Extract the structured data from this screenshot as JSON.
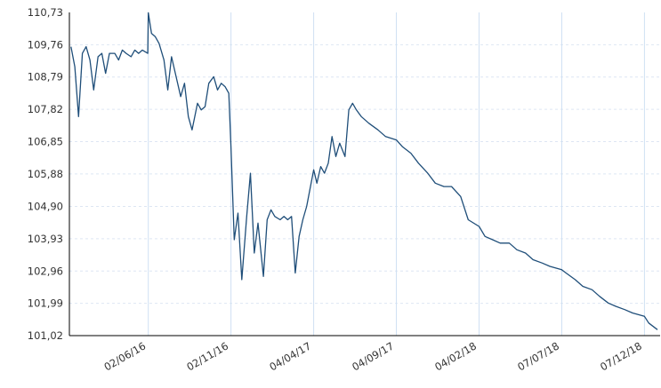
{
  "chart_data": {
    "type": "line",
    "title": "",
    "xlabel": "",
    "ylabel": "",
    "ylim": [
      101.02,
      110.73
    ],
    "y_ticks": [
      "110,73",
      "109,76",
      "108,79",
      "107,82",
      "106,85",
      "105,88",
      "104,90",
      "103,93",
      "102,96",
      "101,99",
      "101,02"
    ],
    "x_ticks": [
      "02/06/16",
      "02/11/16",
      "04/04/17",
      "04/09/17",
      "04/02/18",
      "07/07/18",
      "07/12/18"
    ],
    "grid": true,
    "legend": "none",
    "series": [
      {
        "color": "#1f4e79",
        "x": [
          "2016-01-11",
          "2016-01-18",
          "2016-01-25",
          "2016-02-01",
          "2016-02-08",
          "2016-02-15",
          "2016-02-22",
          "2016-03-01",
          "2016-03-08",
          "2016-03-15",
          "2016-03-22",
          "2016-04-01",
          "2016-04-08",
          "2016-04-15",
          "2016-04-22",
          "2016-05-01",
          "2016-05-08",
          "2016-05-15",
          "2016-05-22",
          "2016-06-01",
          "2016-06-02",
          "2016-06-08",
          "2016-06-15",
          "2016-06-22",
          "2016-07-01",
          "2016-07-08",
          "2016-07-15",
          "2016-07-22",
          "2016-08-01",
          "2016-08-08",
          "2016-08-15",
          "2016-08-22",
          "2016-09-01",
          "2016-09-08",
          "2016-09-15",
          "2016-09-22",
          "2016-10-01",
          "2016-10-08",
          "2016-10-15",
          "2016-10-22",
          "2016-10-29",
          "2016-11-02",
          "2016-11-08",
          "2016-11-15",
          "2016-11-22",
          "2016-12-01",
          "2016-12-08",
          "2016-12-15",
          "2016-12-22",
          "2017-01-01",
          "2017-01-08",
          "2017-01-15",
          "2017-01-22",
          "2017-02-01",
          "2017-02-08",
          "2017-02-15",
          "2017-02-22",
          "2017-03-01",
          "2017-03-08",
          "2017-03-15",
          "2017-03-22",
          "2017-04-04",
          "2017-04-10",
          "2017-04-17",
          "2017-04-24",
          "2017-05-01",
          "2017-05-08",
          "2017-05-15",
          "2017-05-22",
          "2017-06-01",
          "2017-06-08",
          "2017-06-15",
          "2017-06-22",
          "2017-07-01",
          "2017-07-15",
          "2017-08-01",
          "2017-08-15",
          "2017-09-04",
          "2017-09-15",
          "2017-10-01",
          "2017-10-15",
          "2017-11-01",
          "2017-11-15",
          "2017-12-01",
          "2017-12-15",
          "2018-01-01",
          "2018-01-15",
          "2018-02-04",
          "2018-02-15",
          "2018-03-01",
          "2018-03-15",
          "2018-04-01",
          "2018-04-15",
          "2018-05-01",
          "2018-05-15",
          "2018-06-01",
          "2018-06-15",
          "2018-07-07",
          "2018-07-15",
          "2018-08-01",
          "2018-08-15",
          "2018-09-01",
          "2018-09-15",
          "2018-10-01",
          "2018-10-15",
          "2018-11-01",
          "2018-11-15",
          "2018-12-07",
          "2018-12-15",
          "2018-12-31"
        ],
        "values": [
          109.7,
          109.1,
          107.6,
          109.5,
          109.7,
          109.3,
          108.4,
          109.4,
          109.5,
          108.9,
          109.5,
          109.5,
          109.3,
          109.6,
          109.5,
          109.4,
          109.6,
          109.5,
          109.6,
          109.5,
          110.72,
          110.1,
          110.0,
          109.8,
          109.3,
          108.4,
          109.4,
          108.9,
          108.2,
          108.6,
          107.6,
          107.2,
          108.0,
          107.8,
          107.9,
          108.6,
          108.8,
          108.4,
          108.6,
          108.5,
          108.3,
          106.7,
          103.9,
          104.7,
          102.7,
          104.6,
          105.9,
          103.5,
          104.4,
          102.8,
          104.5,
          104.8,
          104.6,
          104.5,
          104.6,
          104.5,
          104.6,
          102.9,
          104.0,
          104.5,
          104.9,
          106.0,
          105.6,
          106.1,
          105.9,
          106.2,
          107.0,
          106.4,
          106.8,
          106.4,
          107.8,
          108.0,
          107.8,
          107.6,
          107.4,
          107.2,
          107.0,
          106.9,
          106.7,
          106.5,
          106.2,
          105.9,
          105.6,
          105.5,
          105.5,
          105.2,
          104.5,
          104.3,
          104.0,
          103.9,
          103.8,
          103.8,
          103.6,
          103.5,
          103.3,
          103.2,
          103.1,
          103.0,
          102.9,
          102.7,
          102.5,
          102.4,
          102.2,
          102.0,
          101.9,
          101.8,
          101.7,
          101.6,
          101.4,
          101.2
        ]
      }
    ]
  }
}
